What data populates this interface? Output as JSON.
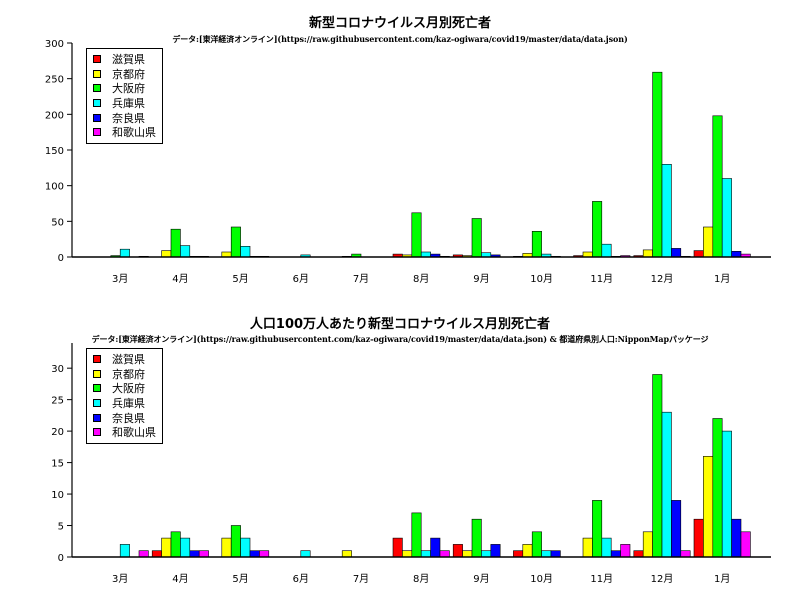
{
  "chart_data": [
    {
      "type": "bar",
      "title": "新型コロナウイルス月別死亡者",
      "subtitle": "データ:[東洋経済オンライン](https://raw.githubusercontent.com/kaz-ogiwara/covid19/master/data/data.json)",
      "categories": [
        "3月",
        "4月",
        "5月",
        "6月",
        "7月",
        "8月",
        "9月",
        "10月",
        "11月",
        "12月",
        "1月"
      ],
      "ylim": [
        0,
        300
      ],
      "yticks": [
        0,
        50,
        100,
        150,
        200,
        250,
        300
      ],
      "legend_position": "top-left",
      "series": [
        {
          "name": "滋賀県",
          "color": "#ff0000",
          "values": [
            0,
            0,
            0,
            0,
            0,
            4,
            3,
            1,
            2,
            2,
            9
          ]
        },
        {
          "name": "京都府",
          "color": "#ffff00",
          "values": [
            0,
            9,
            7,
            0,
            1,
            3,
            2,
            5,
            7,
            10,
            42
          ]
        },
        {
          "name": "大阪府",
          "color": "#00ff00",
          "values": [
            2,
            39,
            42,
            0,
            4,
            62,
            54,
            36,
            78,
            259,
            198
          ]
        },
        {
          "name": "兵庫県",
          "color": "#00ffff",
          "values": [
            11,
            16,
            15,
            3,
            0,
            7,
            6,
            4,
            18,
            130,
            110
          ]
        },
        {
          "name": "奈良県",
          "color": "#0000ff",
          "values": [
            0,
            1,
            1,
            0,
            0,
            4,
            3,
            1,
            1,
            12,
            8
          ]
        },
        {
          "name": "和歌山県",
          "color": "#ff00ff",
          "values": [
            1,
            1,
            1,
            0,
            0,
            1,
            0,
            0,
            2,
            1,
            4
          ]
        }
      ]
    },
    {
      "type": "bar",
      "title": "人口100万人あたり新型コロナウイルス月別死亡者",
      "subtitle": "データ:[東洋経済オンライン](https://raw.githubusercontent.com/kaz-ogiwara/covid19/master/data/data.json) & 都道府県別人口:NipponMapパッケージ",
      "categories": [
        "3月",
        "4月",
        "5月",
        "6月",
        "7月",
        "8月",
        "9月",
        "10月",
        "11月",
        "12月",
        "1月"
      ],
      "ylim": [
        0,
        34
      ],
      "yticks": [
        0,
        5,
        10,
        15,
        20,
        25,
        30
      ],
      "legend_position": "top-left",
      "series": [
        {
          "name": "滋賀県",
          "color": "#ff0000",
          "values": [
            0,
            1,
            0,
            0,
            0,
            3,
            2,
            1,
            0,
            1,
            6
          ]
        },
        {
          "name": "京都府",
          "color": "#ffff00",
          "values": [
            0,
            3,
            3,
            0,
            1,
            1,
            1,
            2,
            3,
            4,
            16
          ]
        },
        {
          "name": "大阪府",
          "color": "#00ff00",
          "values": [
            0,
            4,
            5,
            0,
            0,
            7,
            6,
            4,
            9,
            29,
            22
          ]
        },
        {
          "name": "兵庫県",
          "color": "#00ffff",
          "values": [
            2,
            3,
            3,
            1,
            0,
            1,
            1,
            1,
            3,
            23,
            20
          ]
        },
        {
          "name": "奈良県",
          "color": "#0000ff",
          "values": [
            0,
            1,
            1,
            0,
            0,
            3,
            2,
            1,
            1,
            9,
            6
          ]
        },
        {
          "name": "和歌山県",
          "color": "#ff00ff",
          "values": [
            1,
            1,
            1,
            0,
            0,
            1,
            0,
            0,
            2,
            1,
            4
          ]
        }
      ]
    }
  ]
}
